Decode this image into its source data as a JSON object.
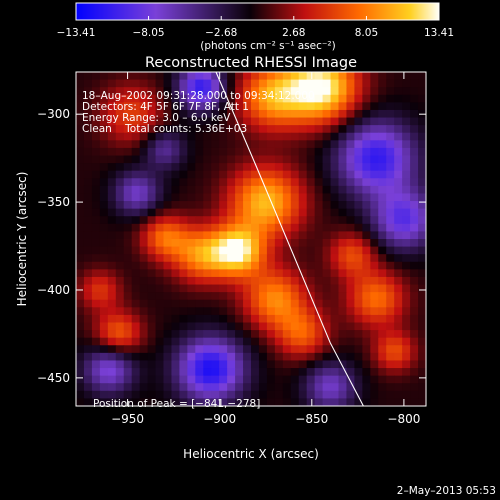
{
  "chart_data": {
    "type": "heatmap",
    "title": "Reconstructed RHESSI Image",
    "xlabel": "Heliocentric X (arcsec)",
    "ylabel": "Heliocentric Y (arcsec)",
    "xlim": [
      -978,
      -788
    ],
    "ylim": [
      -466,
      -276
    ],
    "x_ticks": [
      -950,
      -900,
      -850,
      -800
    ],
    "y_ticks": [
      -300,
      -350,
      -400,
      -450
    ],
    "x_tick_labels": [
      "−950",
      "−900",
      "−850",
      "−800"
    ],
    "y_tick_labels": [
      "−300",
      "−350",
      "−400",
      "−450"
    ],
    "colorbar": {
      "min": -13.41,
      "max": 13.41,
      "ticks": [
        -13.41,
        -8.05,
        -2.68,
        2.68,
        8.05,
        13.41
      ],
      "tick_labels": [
        "−13.41",
        "−8.05",
        "−2.68",
        "2.68",
        "8.05",
        "13.41"
      ],
      "unit_label": "(photons cm⁻² s⁻¹ asec⁻²)"
    },
    "annotations": [
      "18–Aug–2002 09:31:28.000 to 09:34:12.000",
      "Detectors: 4F 5F 6F 7F 8F, Att 1",
      "Energy Range: 3.0 – 6.0 keV",
      "Clean    Total counts: 5.36E+03"
    ],
    "peak_label": "Position of Peak = [−841,−278]",
    "peak": [
      -841,
      -278
    ],
    "limb_curve": {
      "x": [
        -902,
        -880,
        -860,
        -840,
        -822
      ],
      "y": [
        -276,
        -330,
        -380,
        -430,
        -466
      ]
    },
    "sources": [
      {
        "x": -845,
        "y": -285,
        "value": 13.4,
        "sigma": 14
      },
      {
        "x": -872,
        "y": -290,
        "value": 9.0,
        "sigma": 13
      },
      {
        "x": -875,
        "y": -350,
        "value": 10.5,
        "sigma": 14
      },
      {
        "x": -890,
        "y": -378,
        "value": 12.0,
        "sigma": 10
      },
      {
        "x": -910,
        "y": -380,
        "value": 8.5,
        "sigma": 11
      },
      {
        "x": -930,
        "y": -370,
        "value": 7.0,
        "sigma": 9
      },
      {
        "x": -870,
        "y": -405,
        "value": 8.5,
        "sigma": 12
      },
      {
        "x": -855,
        "y": -425,
        "value": 6.5,
        "sigma": 10
      },
      {
        "x": -955,
        "y": -425,
        "value": 7.0,
        "sigma": 9
      },
      {
        "x": -965,
        "y": -400,
        "value": 5.0,
        "sigma": 8
      },
      {
        "x": -948,
        "y": -300,
        "value": 5.5,
        "sigma": 12
      },
      {
        "x": -815,
        "y": -405,
        "value": 7.5,
        "sigma": 11
      },
      {
        "x": -805,
        "y": -435,
        "value": 6.0,
        "sigma": 8
      },
      {
        "x": -828,
        "y": -380,
        "value": 6.0,
        "sigma": 9
      },
      {
        "x": -815,
        "y": -325,
        "value": -11.0,
        "sigma": 15
      },
      {
        "x": -800,
        "y": -360,
        "value": -9.0,
        "sigma": 12
      },
      {
        "x": -910,
        "y": -285,
        "value": -11.0,
        "sigma": 9
      },
      {
        "x": -905,
        "y": -445,
        "value": -12.0,
        "sigma": 13
      },
      {
        "x": -960,
        "y": -445,
        "value": -8.0,
        "sigma": 10
      },
      {
        "x": -945,
        "y": -345,
        "value": -7.0,
        "sigma": 9
      },
      {
        "x": -840,
        "y": -455,
        "value": -7.0,
        "sigma": 10
      },
      {
        "x": -930,
        "y": -320,
        "value": -5.5,
        "sigma": 8
      }
    ]
  },
  "footer": {
    "date": "2–May–2013 05:53"
  }
}
